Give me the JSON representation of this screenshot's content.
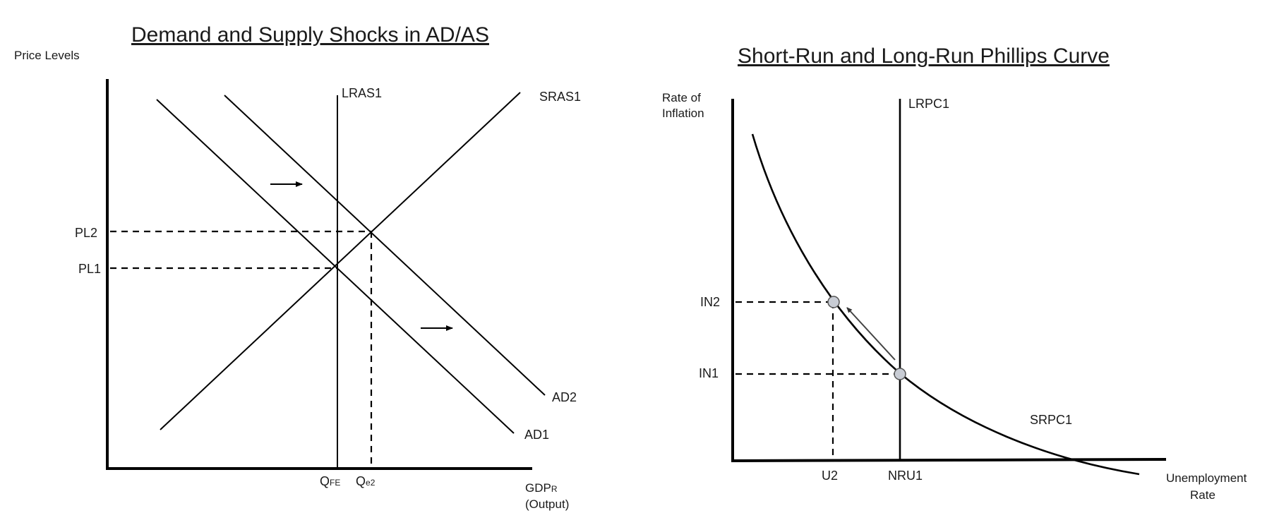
{
  "left_chart": {
    "title": "Demand and Supply Shocks in AD/AS",
    "y_axis_label": "Price Levels",
    "x_axis_label_main": "GDP",
    "x_axis_label_sub": "R",
    "x_axis_label_note": "(Output)",
    "curves": {
      "lras": "LRAS1",
      "sras": "SRAS1",
      "ad1": "AD1",
      "ad2": "AD2"
    },
    "y_ticks": {
      "pl1": "PL1",
      "pl2": "PL2"
    },
    "x_ticks": {
      "qfe_main": "Q",
      "qfe_sub": "FE",
      "qe2_main": "Q",
      "qe2_sub": "e2"
    }
  },
  "right_chart": {
    "title": "Short-Run and Long-Run Phillips Curve",
    "y_axis_label_line1": "Rate of",
    "y_axis_label_line2": "Inflation",
    "x_axis_label_line1": "Unemployment",
    "x_axis_label_line2": "Rate",
    "curves": {
      "lrpc": "LRPC1",
      "srpc": "SRPC1"
    },
    "y_ticks": {
      "in1": "IN1",
      "in2": "IN2"
    },
    "x_ticks": {
      "u2": "U2",
      "nru": "NRU1"
    }
  }
}
